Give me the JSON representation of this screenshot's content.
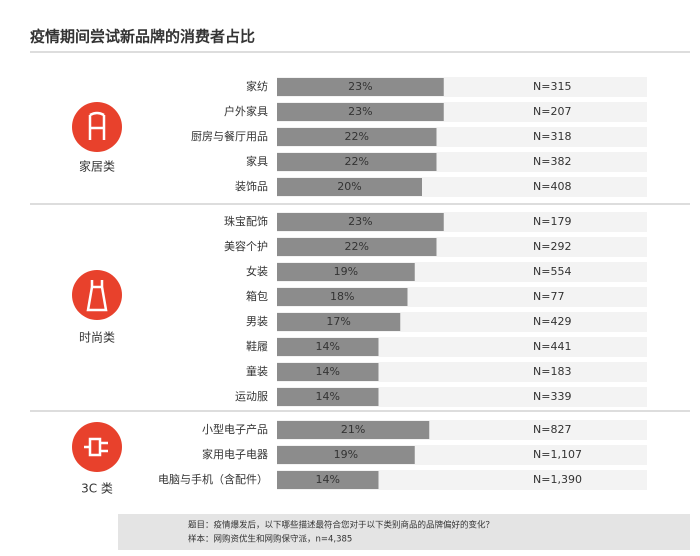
{
  "chart_data": {
    "type": "bar",
    "title": "疫情期间尝试新品牌的消费者占比",
    "color": "#8c8c8c",
    "groups": [
      {
        "name": "家居类",
        "categories": [
          "家纺",
          "户外家具",
          "厨房与餐厅用品",
          "家具",
          "装饰品"
        ],
        "values": [
          23,
          23,
          22,
          22,
          20
        ],
        "value_labels": [
          "23%",
          "23%",
          "22%",
          "22%",
          "20%"
        ],
        "n_labels": [
          "N=315",
          "N=207",
          "N=318",
          "N=382",
          "N=408"
        ]
      },
      {
        "name": "时尚类",
        "categories": [
          "珠宝配饰",
          "美容个护",
          "女装",
          "箱包",
          "男装",
          "鞋履",
          "童装",
          "运动服"
        ],
        "values": [
          23,
          22,
          19,
          18,
          17,
          14,
          14,
          14
        ],
        "value_labels": [
          "23%",
          "22%",
          "19%",
          "18%",
          "17%",
          "14%",
          "14%",
          "14%"
        ],
        "n_labels": [
          "N=179",
          "N=292",
          "N=554",
          "N=77",
          "N=429",
          "N=441",
          "N=183",
          "N=339"
        ]
      },
      {
        "name": "3C 类",
        "categories": [
          "小型电子产品",
          "家用电子电器",
          "电脑与手机（含配件）"
        ],
        "values": [
          21,
          19,
          14
        ],
        "value_labels": [
          "21%",
          "19%",
          "14%"
        ],
        "n_labels": [
          "N=827",
          "N=1,107",
          "N=1,390"
        ]
      }
    ],
    "footnotes": [
      "题目：疫情爆发后，以下哪些描述最符合您对于以下类别商品的品牌偏好的变化？",
      "样本：网购资优生和网购保守派，n=4,385"
    ]
  }
}
